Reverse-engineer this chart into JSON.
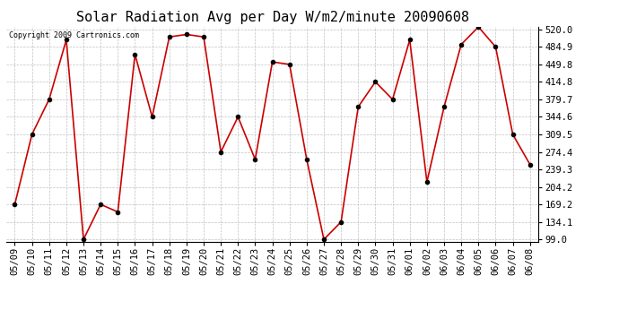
{
  "title": "Solar Radiation Avg per Day W/m2/minute 20090608",
  "copyright_text": "Copyright 2009 Cartronics.com",
  "dates": [
    "05/09",
    "05/10",
    "05/11",
    "05/12",
    "05/13",
    "05/14",
    "05/15",
    "05/16",
    "05/17",
    "05/18",
    "05/19",
    "05/20",
    "05/21",
    "05/22",
    "05/23",
    "05/24",
    "05/25",
    "05/26",
    "05/27",
    "05/28",
    "05/29",
    "05/30",
    "05/31",
    "06/01",
    "06/02",
    "06/03",
    "06/04",
    "06/05",
    "06/06",
    "06/07",
    "06/08"
  ],
  "values": [
    169.2,
    309.5,
    379.7,
    499.0,
    99.0,
    169.2,
    154.1,
    469.8,
    344.6,
    504.9,
    509.8,
    504.9,
    274.4,
    344.6,
    259.3,
    454.8,
    449.8,
    259.3,
    99.0,
    134.1,
    364.7,
    414.8,
    379.7,
    499.0,
    214.2,
    364.7,
    489.9,
    524.9,
    484.9,
    309.5,
    249.3
  ],
  "line_color": "#cc0000",
  "marker_color": "#000000",
  "background_color": "#ffffff",
  "grid_color": "#c0c0c0",
  "yticks": [
    99.0,
    134.1,
    169.2,
    204.2,
    239.3,
    274.4,
    309.5,
    344.6,
    379.7,
    414.8,
    449.8,
    484.9,
    520.0
  ],
  "ymin": 99.0,
  "ymax": 520.0,
  "title_fontsize": 11,
  "copyright_fontsize": 6,
  "tick_fontsize": 7.5
}
